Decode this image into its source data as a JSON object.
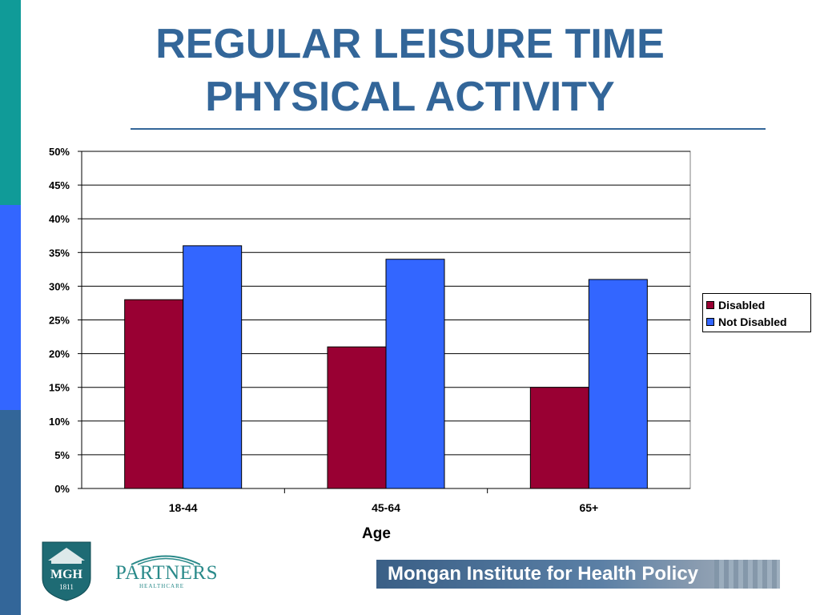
{
  "slide": {
    "title_line1": "REGULAR LEISURE TIME",
    "title_line2": "PHYSICAL ACTIVITY"
  },
  "logos": {
    "mgh_text": "MGH",
    "mgh_year": "1811",
    "partners_text": "PARTNERS",
    "partners_sub": "HEALTHCARE",
    "banner_text": "Mongan Institute for Health Policy"
  },
  "colors": {
    "title": "#336699",
    "disabled": "#990033",
    "not_disabled": "#3366ff",
    "sidebar_top": "#109b98",
    "sidebar_mid": "#3366ff",
    "sidebar_bottom": "#336699"
  },
  "chart_data": {
    "type": "bar",
    "categories": [
      "18-44",
      "45-64",
      "65+"
    ],
    "series": [
      {
        "name": "Disabled",
        "values": [
          28,
          21,
          15
        ],
        "color": "#990033"
      },
      {
        "name": "Not Disabled",
        "values": [
          36,
          34,
          31
        ],
        "color": "#3366ff"
      }
    ],
    "xlabel": "Age",
    "ylabel": "",
    "ylim": [
      0,
      50
    ],
    "yticks": [
      "0%",
      "5%",
      "10%",
      "15%",
      "20%",
      "25%",
      "30%",
      "35%",
      "40%",
      "45%",
      "50%"
    ],
    "grid": true,
    "legend_position": "right"
  }
}
